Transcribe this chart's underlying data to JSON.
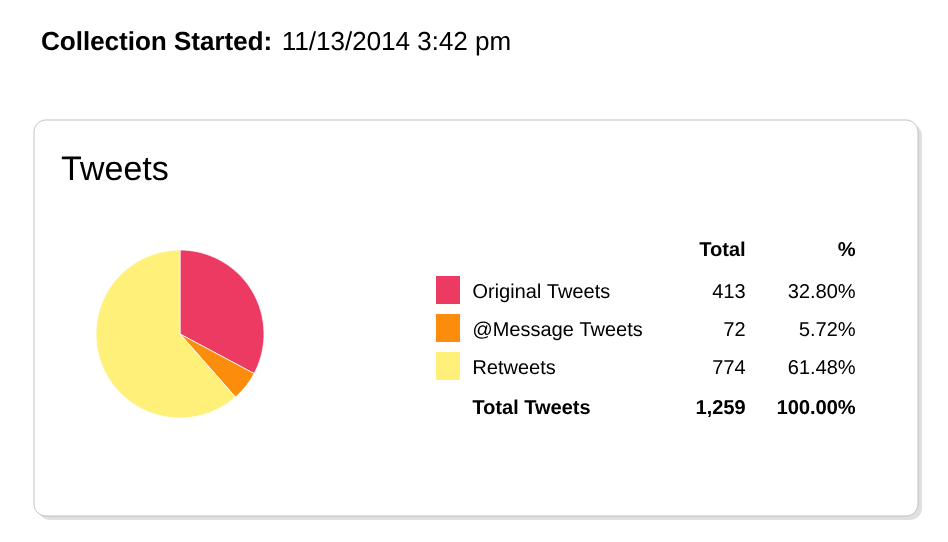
{
  "chart_data": {
    "type": "pie",
    "title": "Tweets",
    "categories": [
      "Original Tweets",
      "@Message Tweets",
      "Retweets"
    ],
    "values": [
      413,
      72,
      774
    ],
    "colors": [
      "#ec3a62",
      "#fb8c0c",
      "#fff07a"
    ],
    "data_labels": true,
    "legend": "right",
    "annotations": [
      "**Collection Started:** 11/13/2014 3:42 pm",
      "Total",
      "%",
      "32.80%",
      "5.72%",
      "61.48%",
      "Total Tweets",
      "1,259",
      "100.00%"
    ]
  }
}
